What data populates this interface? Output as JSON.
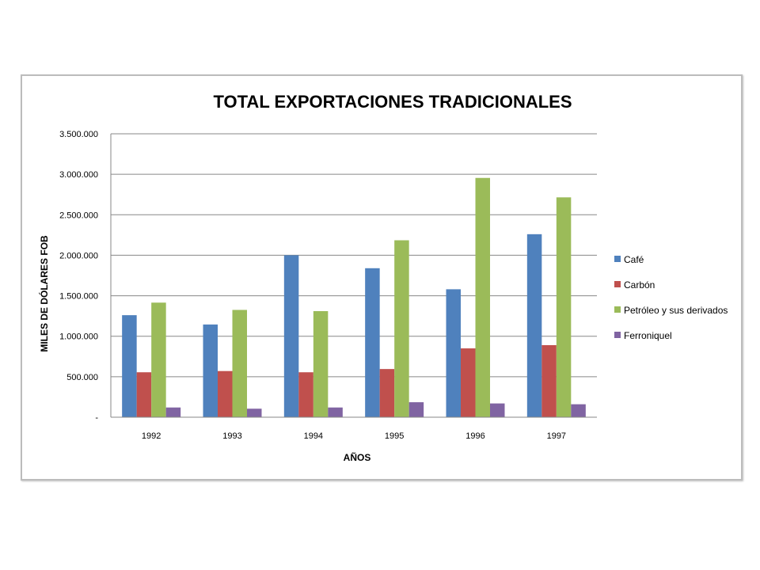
{
  "chart_data": {
    "type": "bar",
    "title": "TOTAL EXPORTACIONES TRADICIONALES",
    "xlabel": "AÑOS",
    "ylabel": "MILES DE DÓLARES FOB",
    "categories": [
      "1992",
      "1993",
      "1994",
      "1995",
      "1996",
      "1997"
    ],
    "ylim": [
      0,
      3500000
    ],
    "y_ticks": [
      0,
      500000,
      1000000,
      1500000,
      2000000,
      2500000,
      3000000,
      3500000
    ],
    "y_tick_labels": [
      "-",
      "500.000",
      "1.000.000",
      "1.500.000",
      "2.000.000",
      "2.500.000",
      "3.000.000",
      "3.500.000"
    ],
    "grid": true,
    "legend_position": "right",
    "series": [
      {
        "name": "Café",
        "color": "#4f81bd",
        "values": [
          1260000,
          1145000,
          2000000,
          1840000,
          1580000,
          2260000
        ]
      },
      {
        "name": "Carbón",
        "color": "#c0504d",
        "values": [
          555000,
          570000,
          555000,
          595000,
          850000,
          890000
        ]
      },
      {
        "name": "Petróleo y sus derivados",
        "color": "#9bbb59",
        "values": [
          1415000,
          1325000,
          1310000,
          2185000,
          2955000,
          2715000
        ]
      },
      {
        "name": "Ferroniquel",
        "color": "#8064a2",
        "values": [
          120000,
          105000,
          120000,
          185000,
          170000,
          160000
        ]
      }
    ]
  }
}
